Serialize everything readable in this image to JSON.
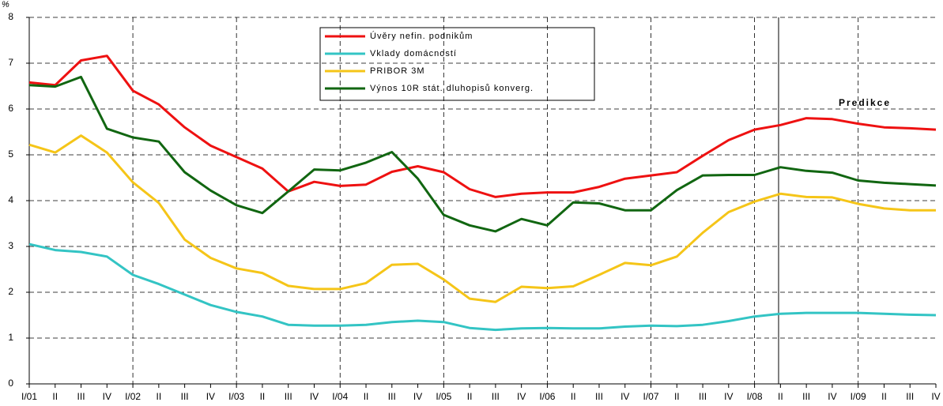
{
  "chart_data": {
    "type": "line",
    "y_label": "%",
    "annotation": "Predikce",
    "categories": [
      "I/01",
      "II",
      "III",
      "IV",
      "I/02",
      "II",
      "III",
      "IV",
      "I/03",
      "II",
      "III",
      "IV",
      "I/04",
      "II",
      "III",
      "IV",
      "I/05",
      "II",
      "III",
      "IV",
      "I/06",
      "II",
      "III",
      "IV",
      "I/07",
      "II",
      "III",
      "IV",
      "I/08",
      "II",
      "III",
      "IV",
      "I/09",
      "II",
      "III",
      "IV"
    ],
    "ylim": [
      0,
      8
    ],
    "yticks": [
      0,
      1,
      2,
      3,
      4,
      5,
      6,
      7,
      8
    ],
    "grid": true,
    "series": [
      {
        "name": "Úvěry nefin. podnikům",
        "color": "#ee1111",
        "values": [
          6.58,
          6.52,
          7.06,
          7.16,
          6.4,
          6.1,
          5.6,
          5.2,
          4.95,
          4.7,
          4.2,
          4.41,
          4.32,
          4.35,
          4.63,
          4.75,
          4.62,
          4.25,
          4.08,
          4.15,
          4.18,
          4.18,
          4.3,
          4.48,
          4.55,
          4.62,
          4.98,
          5.32,
          5.55,
          5.65,
          5.8,
          5.78,
          5.68,
          5.6,
          5.58,
          5.55
        ]
      },
      {
        "name": "Vklady domácností",
        "color": "#33c4c4",
        "values": [
          3.05,
          2.92,
          2.88,
          2.78,
          2.38,
          2.18,
          1.95,
          1.72,
          1.57,
          1.47,
          1.29,
          1.27,
          1.27,
          1.29,
          1.35,
          1.38,
          1.35,
          1.22,
          1.18,
          1.21,
          1.22,
          1.21,
          1.21,
          1.25,
          1.27,
          1.26,
          1.29,
          1.37,
          1.47,
          1.53,
          1.55,
          1.55,
          1.55,
          1.53,
          1.51,
          1.5
        ]
      },
      {
        "name": "PRIBOR 3M",
        "color": "#f5c518",
        "values": [
          5.22,
          5.05,
          5.42,
          5.05,
          4.4,
          3.95,
          3.15,
          2.75,
          2.52,
          2.42,
          2.14,
          2.07,
          2.07,
          2.2,
          2.6,
          2.62,
          2.28,
          1.86,
          1.79,
          2.12,
          2.09,
          2.13,
          2.38,
          2.64,
          2.59,
          2.78,
          3.3,
          3.75,
          3.98,
          4.15,
          4.08,
          4.07,
          3.93,
          3.83,
          3.79,
          3.79
        ]
      },
      {
        "name": "Výnos 10R stát. dluhopisů konverg.",
        "color": "#116611",
        "values": [
          6.52,
          6.49,
          6.7,
          5.57,
          5.38,
          5.29,
          4.62,
          4.22,
          3.9,
          3.73,
          4.2,
          4.68,
          4.66,
          4.83,
          5.06,
          4.48,
          3.69,
          3.46,
          3.33,
          3.6,
          3.46,
          3.96,
          3.94,
          3.79,
          3.79,
          4.23,
          4.55,
          4.56,
          4.56,
          4.73,
          4.65,
          4.61,
          4.44,
          4.39,
          4.36,
          4.33
        ]
      }
    ]
  }
}
